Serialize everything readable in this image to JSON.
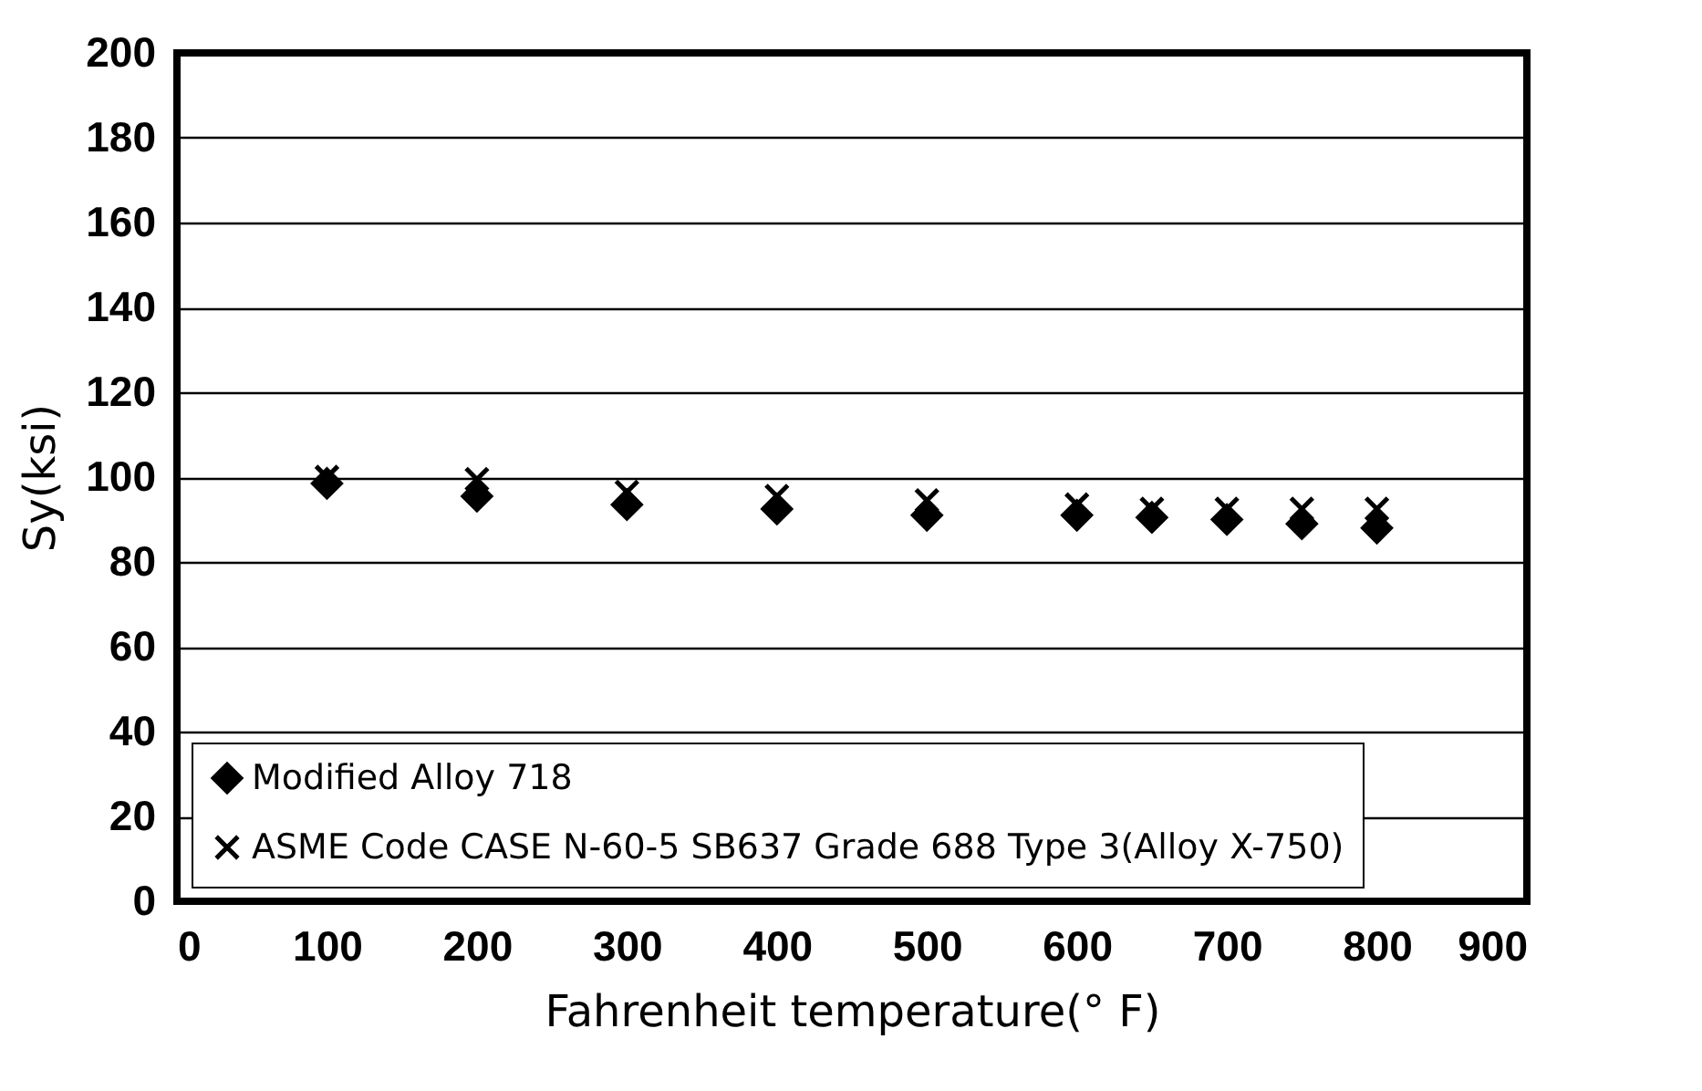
{
  "chart_data": {
    "type": "scatter",
    "xlabel": "Fahrenheit temperature(° F)",
    "ylabel": "Sy(ksi)",
    "x": [
      100,
      200,
      300,
      400,
      500,
      600,
      650,
      700,
      750,
      800
    ],
    "series": [
      {
        "name": "Modified Alloy 718",
        "color": "#000000",
        "marker": "diamond",
        "values": [
          98.5,
          95.5,
          93.5,
          92.5,
          91,
          91,
          90.5,
          90,
          89,
          88
        ]
      },
      {
        "name": "ASME Code CASE N-60-5 SB637 Grade 688 Type 3(Alloy X-750)",
        "color": "#000000",
        "marker": "cross",
        "values": [
          100,
          99.5,
          96.5,
          95.5,
          94.5,
          93.5,
          92.5,
          92.5,
          92.5,
          92.5
        ]
      }
    ],
    "xlim": [
      0,
      900
    ],
    "xticks": [
      0,
      100,
      200,
      300,
      400,
      500,
      600,
      700,
      800,
      900
    ],
    "ylim": [
      0,
      200
    ],
    "yticks": [
      0,
      20,
      40,
      60,
      80,
      100,
      120,
      140,
      160,
      180,
      200
    ],
    "grid": "y",
    "legend": "bottom left"
  }
}
